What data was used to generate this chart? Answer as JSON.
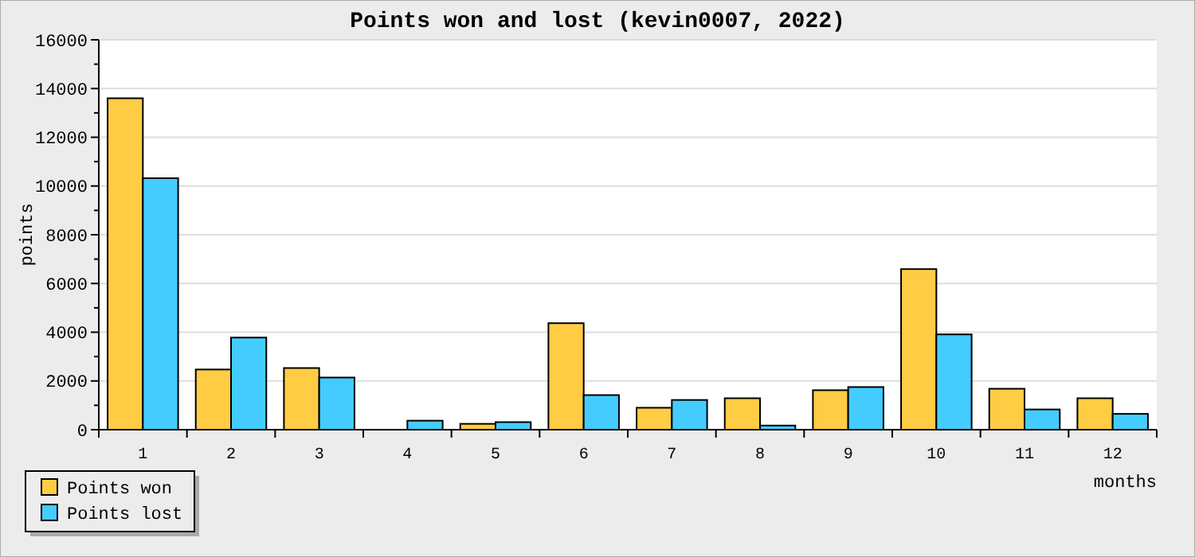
{
  "chart_data": {
    "type": "bar",
    "title": "Points won and lost (kevin0007, 2022)",
    "xlabel": "months",
    "ylabel": "points",
    "categories": [
      "1",
      "2",
      "3",
      "4",
      "5",
      "6",
      "7",
      "8",
      "9",
      "10",
      "11",
      "12"
    ],
    "series": [
      {
        "name": "Points won",
        "color": "#ffcc44",
        "values": [
          13600,
          2470,
          2530,
          0,
          240,
          4370,
          900,
          1290,
          1620,
          6590,
          1680,
          1290
        ]
      },
      {
        "name": "Points lost",
        "color": "#44ccff",
        "values": [
          10320,
          3780,
          2140,
          370,
          310,
          1420,
          1220,
          170,
          1750,
          3910,
          830,
          650
        ]
      }
    ],
    "ylim": [
      0,
      16000
    ],
    "yticks": [
      0,
      2000,
      4000,
      6000,
      8000,
      10000,
      12000,
      14000,
      16000
    ],
    "grid": "y",
    "legend": "bottom left"
  }
}
